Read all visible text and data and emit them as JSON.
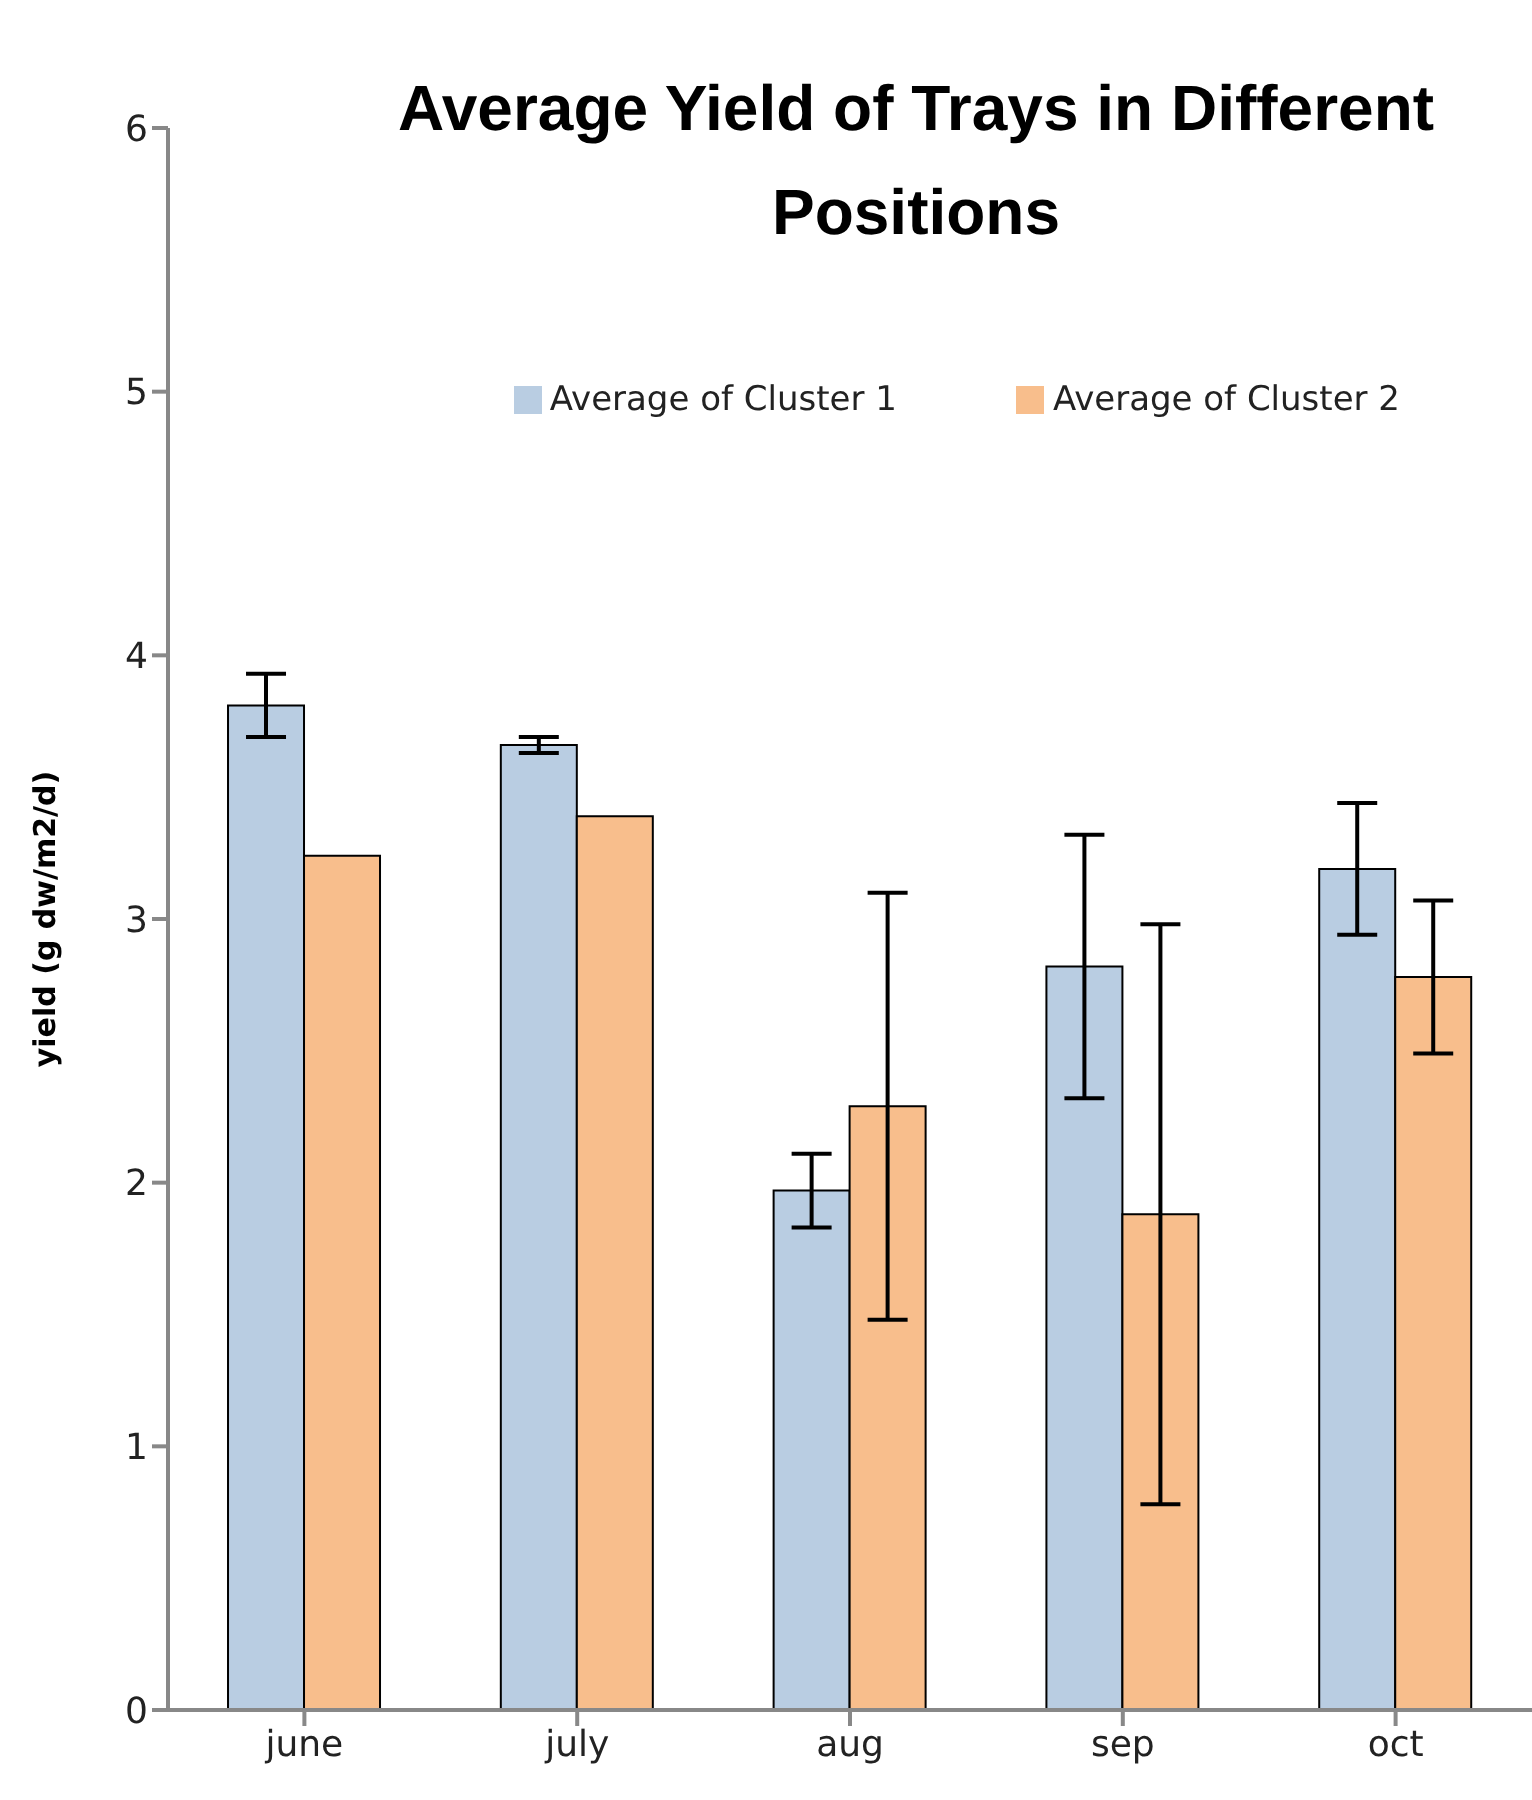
{
  "chart_data": {
    "type": "bar",
    "title": "Average Yield of Trays in Different Positions",
    "ylabel": "yield (g dw/m2/d)",
    "categories": [
      "june",
      "july",
      "aug",
      "sep",
      "oct"
    ],
    "series": [
      {
        "name": "Average of Cluster 1",
        "color": "#b9cde2",
        "values": [
          3.81,
          3.66,
          1.97,
          2.82,
          3.19
        ],
        "errors": [
          0.12,
          0.03,
          0.14,
          0.5,
          0.25
        ]
      },
      {
        "name": "Average of Cluster 2",
        "color": "#f8be8c",
        "values": [
          3.24,
          3.39,
          2.29,
          1.88,
          2.78
        ],
        "errors": [
          null,
          null,
          0.81,
          1.1,
          0.29
        ]
      }
    ],
    "ylim": [
      0,
      6
    ],
    "yticks": [
      0,
      1,
      2,
      3,
      4,
      5,
      6
    ],
    "grid": false,
    "legend": "top right"
  }
}
